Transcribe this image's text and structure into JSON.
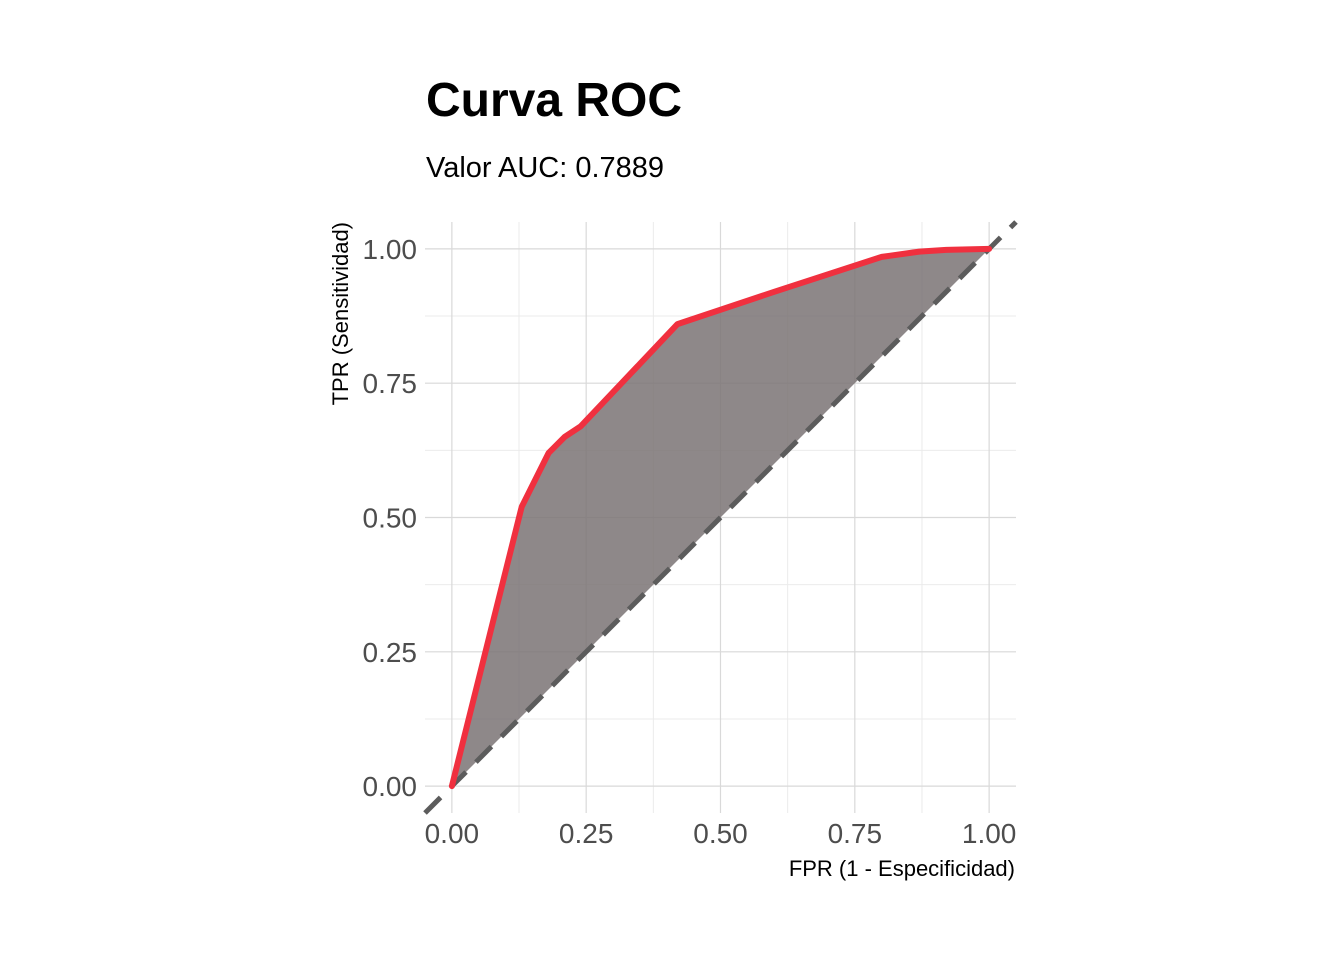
{
  "chart_data": {
    "type": "area",
    "title": "Curva ROC",
    "subtitle": "Valor AUC: 0.7889",
    "xlabel": "FPR (1 - Especificidad)",
    "ylabel": "TPR (Sensitividad)",
    "xlim": [
      -0.05,
      1.05
    ],
    "ylim": [
      -0.05,
      1.05
    ],
    "x_ticks": [
      0,
      0.25,
      0.5,
      0.75,
      1
    ],
    "y_ticks": [
      0,
      0.25,
      0.5,
      0.75,
      1
    ],
    "x_tick_labels": [
      "0.00",
      "0.25",
      "0.50",
      "0.75",
      "1.00"
    ],
    "y_tick_labels": [
      "0.00",
      "0.25",
      "0.50",
      "0.75",
      "1.00"
    ],
    "grid": true,
    "series": [
      {
        "x": [
          0.0,
          0.13,
          0.18,
          0.21,
          0.24,
          0.42,
          0.6,
          0.8,
          0.87,
          0.92,
          1.0
        ],
        "y": [
          0.0,
          0.52,
          0.62,
          0.65,
          0.67,
          0.86,
          0.92,
          0.985,
          0.995,
          0.998,
          1.0
        ]
      }
    ],
    "reference_line": {
      "x": [
        -0.05,
        1.05
      ],
      "y": [
        -0.05,
        1.05
      ],
      "style": "dashed"
    },
    "colors": {
      "curve": "#f0303f",
      "fill": "#7a7374",
      "reference": "#5c5c5c"
    }
  }
}
